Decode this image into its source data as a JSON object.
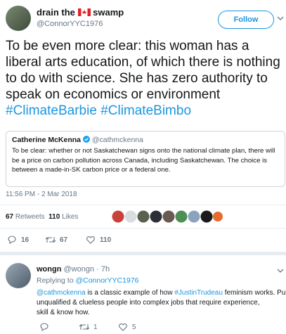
{
  "tweet": {
    "author": {
      "name_before": "drain the",
      "name_after": "swamp",
      "handle": "@ConnorYYC1976"
    },
    "follow_button": "Follow",
    "text": "To be even more clear: this woman has a liberal arts education, of which there is nothing to do with science. She has zero authority to speak on economics or environment",
    "hashtags": [
      "#ClimateBarbie",
      "#ClimateBimbo"
    ],
    "quote": {
      "name": "Catherine McKenna",
      "handle": "@cathmckenna",
      "text": "To be clear: whether or not Saskatchewan signs onto the national climate plan, there will be a price on carbon pollution across Canada, including Saskatchewan. The choice is between a made-in-SK carbon price or a federal one."
    },
    "timestamp": "11:56 PM - 2 Mar 2018",
    "stats": {
      "retweets": "67",
      "retweets_label": "Retweets",
      "likes": "110",
      "likes_label": "Likes"
    },
    "actions": {
      "replies": "16",
      "retweets": "67",
      "likes": "110"
    }
  },
  "reply": {
    "name": "wongn",
    "handle": "@wongn · 7h",
    "replying_to": "Replying to",
    "replying_handle": "@ConnorYYC1976",
    "mention": "@cathmckenna",
    "text_1": " is a classic example of how ",
    "hashtag": "#JustinTrudeau",
    "text_2": " feminism works. Pu",
    "text_3": "unqualified & clueless people into complex jobs that require experience, skill & know how.",
    "actions": {
      "retweets": "1",
      "likes": "5"
    }
  }
}
